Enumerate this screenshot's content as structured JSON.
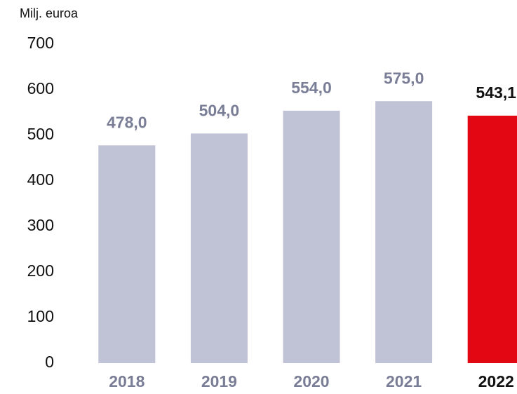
{
  "chart_data": {
    "type": "bar",
    "y_axis_label": "Milj. euroa",
    "categories": [
      "2018",
      "2019",
      "2020",
      "2021",
      "2022"
    ],
    "values": [
      478.0,
      504.0,
      554.0,
      575.0,
      543.1
    ],
    "value_labels": [
      "478,0",
      "504,0",
      "554,0",
      "575,0",
      "543,1"
    ],
    "colors": [
      "#c0c3d6",
      "#c0c3d6",
      "#c0c3d6",
      "#c0c3d6",
      "#e30613"
    ],
    "label_colors": [
      "#7a7d96",
      "#7a7d96",
      "#7a7d96",
      "#7a7d96",
      "#111111"
    ],
    "ylim": [
      0,
      700
    ],
    "yticks": [
      0,
      100,
      200,
      300,
      400,
      500,
      600,
      700
    ],
    "grid": false
  }
}
